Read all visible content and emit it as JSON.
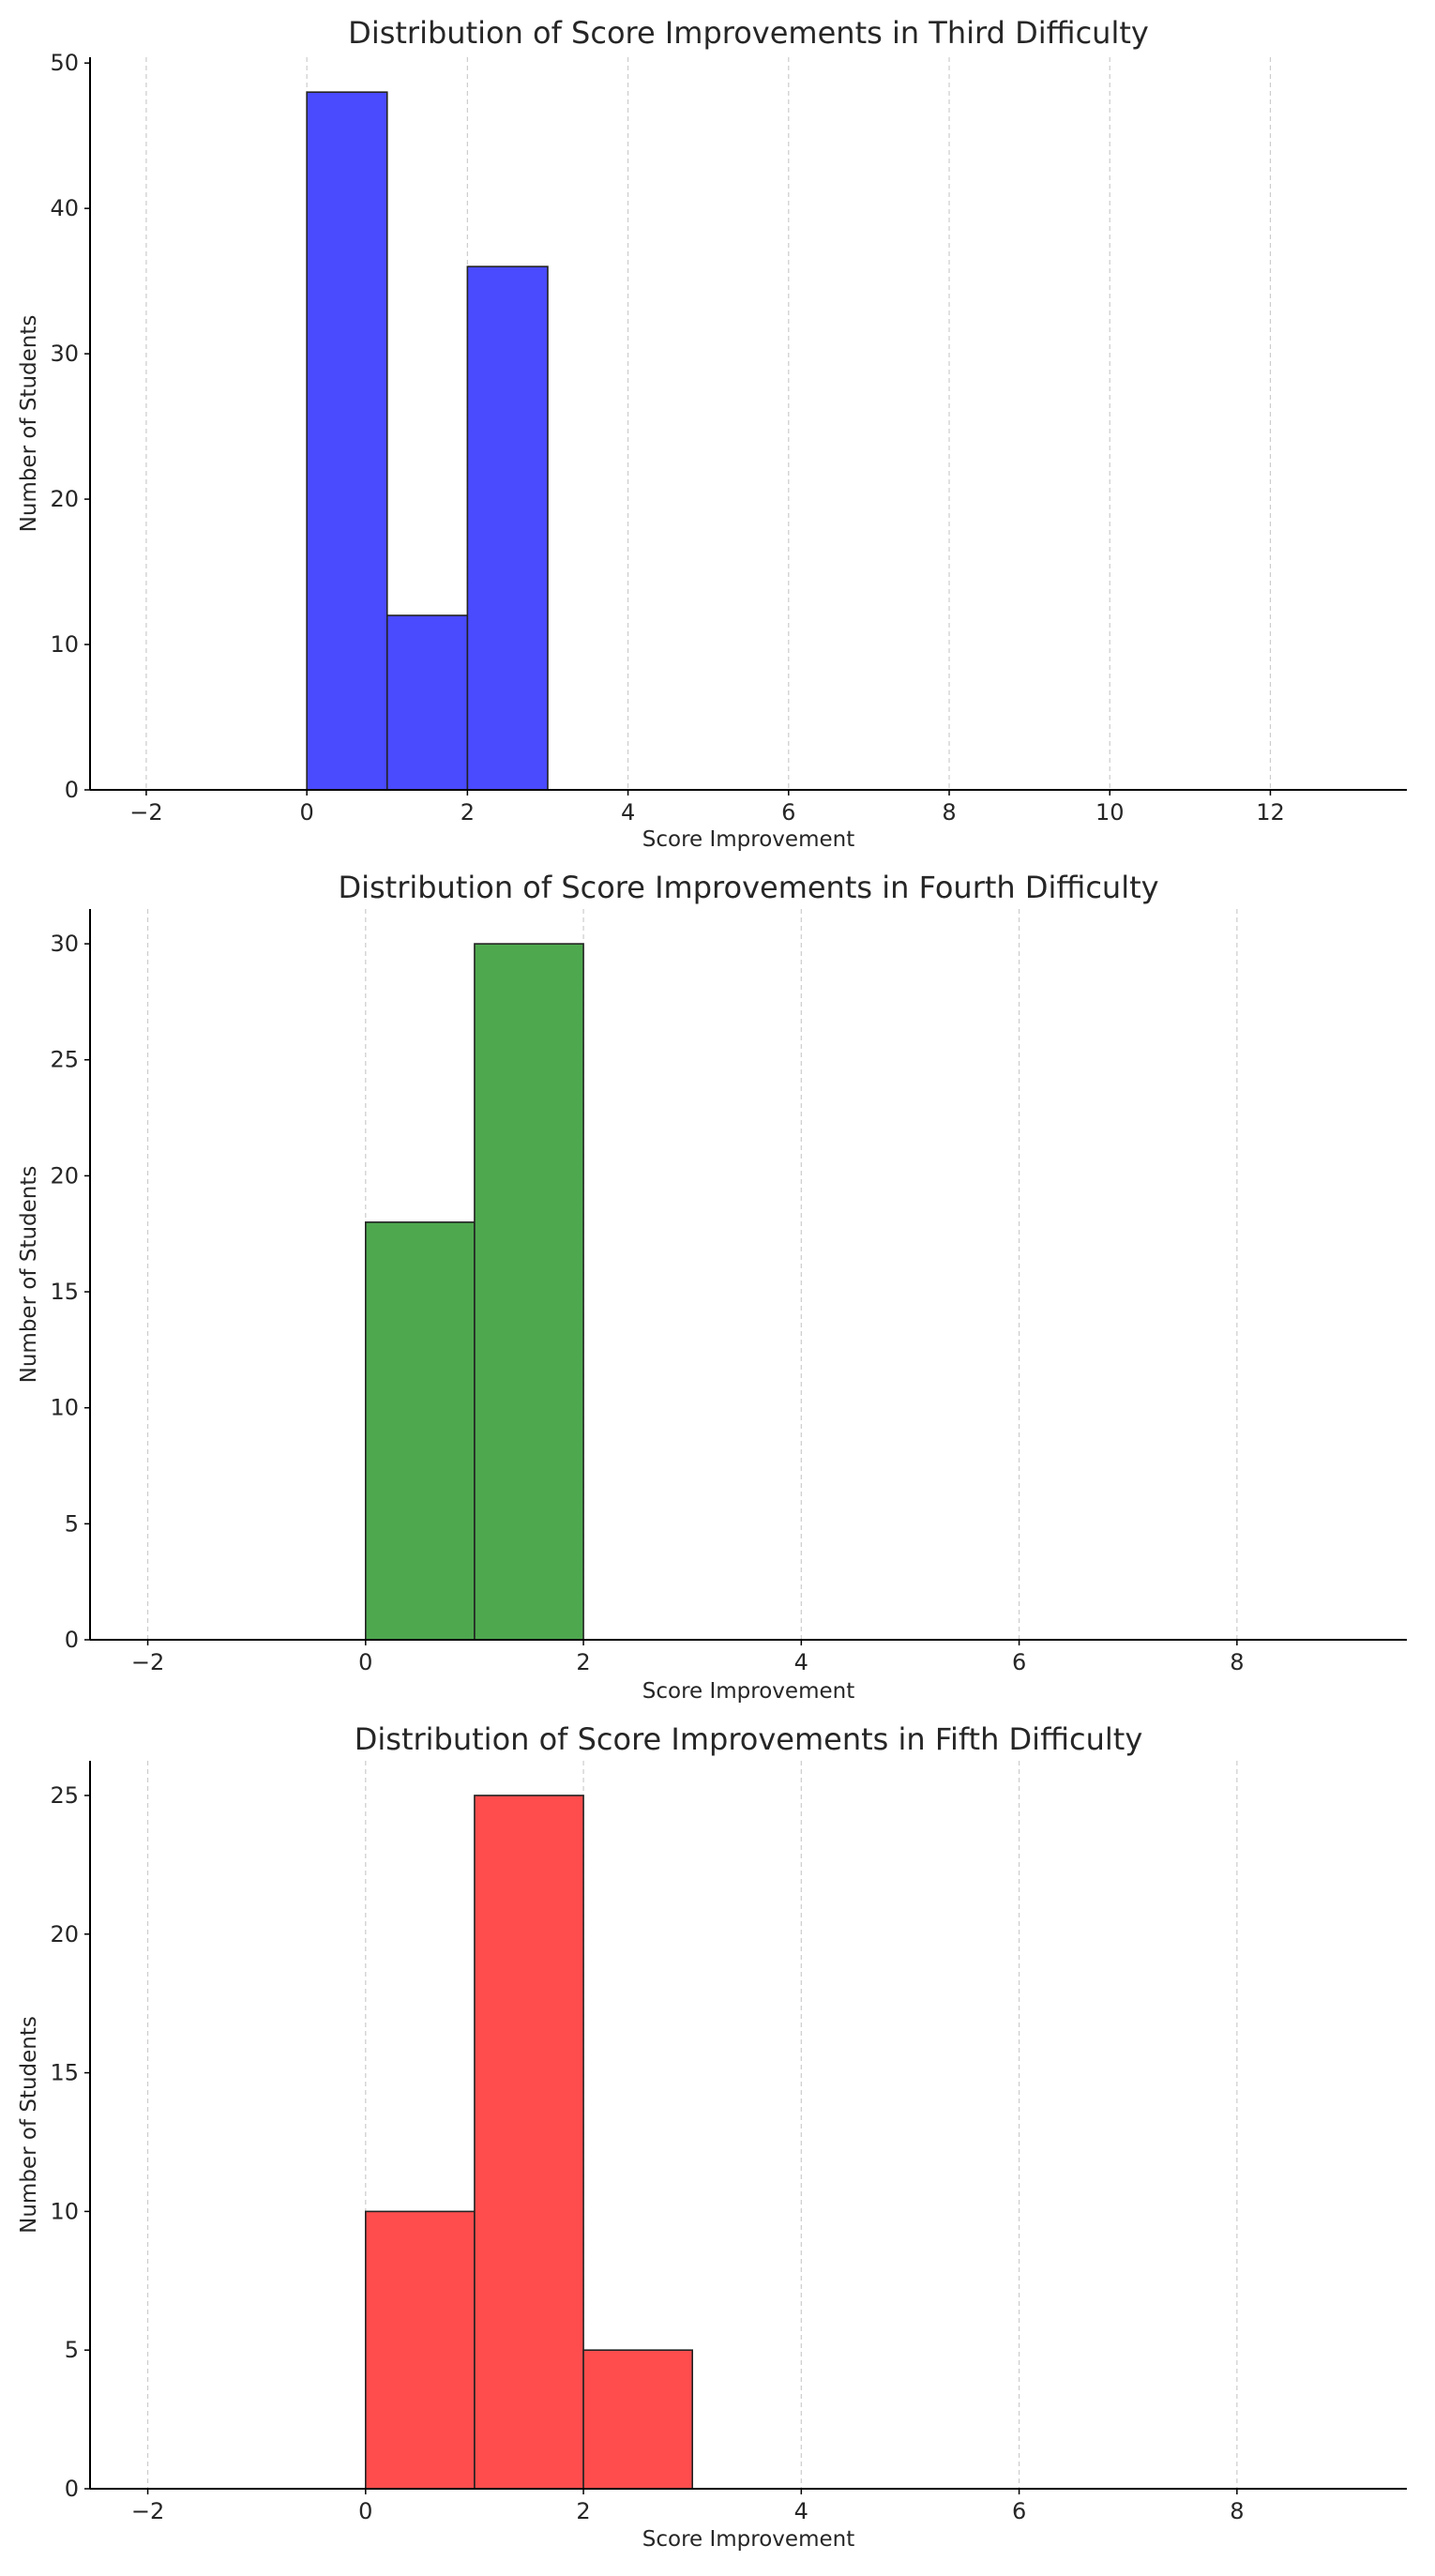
{
  "chart_data": [
    {
      "type": "bar",
      "title": "Distribution of Score Improvements in Third Difficulty",
      "xlabel": "Score Improvement",
      "ylabel": "Number of Students",
      "bins": [
        [
          0,
          1
        ],
        [
          1,
          2
        ],
        [
          2,
          3
        ]
      ],
      "values": [
        48,
        12,
        36
      ],
      "color": "#4a4aff",
      "xlim": [
        -2.7,
        13.7
      ],
      "ylim": [
        0,
        50.4
      ],
      "xticks": [
        -2,
        0,
        2,
        4,
        6,
        8,
        10,
        12
      ],
      "yticks": [
        0,
        10,
        20,
        30,
        40,
        50
      ],
      "grid": "vertical dashed"
    },
    {
      "type": "bar",
      "title": "Distribution of Score Improvements in Fourth Difficulty",
      "xlabel": "Score Improvement",
      "ylabel": "Number of Students",
      "bins": [
        [
          0,
          1
        ],
        [
          1,
          2
        ]
      ],
      "values": [
        18,
        30
      ],
      "color": "#4ea84e",
      "xlim": [
        -2.53,
        9.56
      ],
      "ylim": [
        0,
        31.5
      ],
      "xticks": [
        -2,
        0,
        2,
        4,
        6,
        8
      ],
      "yticks": [
        0,
        5,
        10,
        15,
        20,
        25,
        30
      ],
      "grid": "vertical dashed"
    },
    {
      "type": "bar",
      "title": "Distribution of Score Improvements in Fifth Difficulty",
      "xlabel": "Score Improvement",
      "ylabel": "Number of Students",
      "bins": [
        [
          0,
          1
        ],
        [
          1,
          2
        ],
        [
          2,
          3
        ]
      ],
      "values": [
        10,
        25,
        5
      ],
      "color": "#ff4d4d",
      "xlim": [
        -2.53,
        9.56
      ],
      "ylim": [
        0,
        26.25
      ],
      "xticks": [
        -2,
        0,
        2,
        4,
        6,
        8
      ],
      "yticks": [
        0,
        5,
        10,
        15,
        20,
        25
      ],
      "grid": "vertical dashed"
    }
  ]
}
